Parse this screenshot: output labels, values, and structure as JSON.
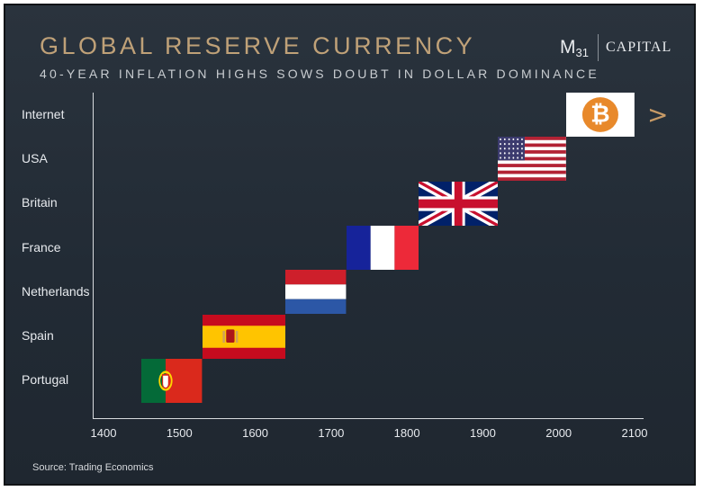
{
  "header": {
    "title": "GLOBAL RESERVE CURRENCY",
    "subtitle": "40-YEAR INFLATION HIGHS SOWS DOUBT IN DOLLAR DOMINANCE"
  },
  "logo": {
    "mark": "M",
    "mark_sub": "31",
    "name": "CAPITAL"
  },
  "source": "Source: Trading Economics",
  "colors": {
    "title": "#bfa178",
    "arrow": "#c79a66",
    "background": "#252e38"
  },
  "chart_data": {
    "type": "timeline",
    "title": "GLOBAL RESERVE CURRENCY",
    "subtitle": "40-YEAR INFLATION HIGHS SOWS DOUBT IN DOLLAR DOMINANCE",
    "categories": [
      "Internet",
      "USA",
      "Britain",
      "France",
      "Netherlands",
      "Spain",
      "Portugal"
    ],
    "xlim": [
      1400,
      2100
    ],
    "xticks": [
      1400,
      1500,
      1600,
      1700,
      1800,
      1900,
      2000,
      2100
    ],
    "periods": [
      {
        "category": "Portugal",
        "start": 1450,
        "end": 1530,
        "icon": "flag-portugal"
      },
      {
        "category": "Spain",
        "start": 1530,
        "end": 1640,
        "icon": "flag-spain"
      },
      {
        "category": "Netherlands",
        "start": 1640,
        "end": 1720,
        "icon": "flag-netherlands"
      },
      {
        "category": "France",
        "start": 1720,
        "end": 1815,
        "icon": "flag-france"
      },
      {
        "category": "Britain",
        "start": 1815,
        "end": 1920,
        "icon": "flag-britain"
      },
      {
        "category": "USA",
        "start": 1920,
        "end": 2010,
        "icon": "flag-usa"
      },
      {
        "category": "Internet",
        "start": 2010,
        "end": 2100,
        "icon": "bitcoin-logo"
      }
    ],
    "continuation_marker": ">"
  }
}
